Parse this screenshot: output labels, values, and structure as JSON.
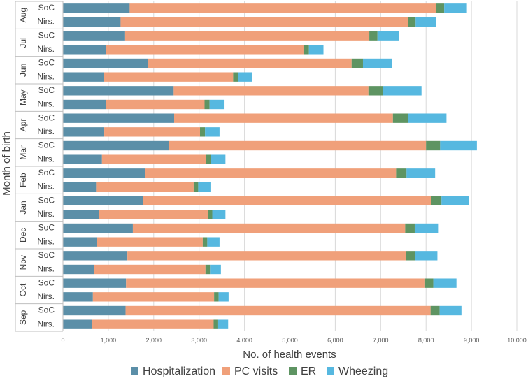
{
  "chart_data": {
    "type": "bar",
    "orientation": "horizontal-stacked",
    "title": "",
    "xlabel": "No. of health events",
    "ylabel": "Month of birth",
    "xlim": [
      0,
      10000
    ],
    "xticks": [
      0,
      1000,
      2000,
      3000,
      4000,
      5000,
      6000,
      7000,
      8000,
      9000,
      10000
    ],
    "xtick_labels": [
      "0",
      "1,000",
      "2,000",
      "3,000",
      "4,000",
      "5,000",
      "6,000",
      "7,000",
      "8,000",
      "9,000",
      "10,000"
    ],
    "grid": true,
    "legend_position": "bottom",
    "groups": [
      "Aug",
      "Jul",
      "Jun",
      "May",
      "Apr",
      "Mar",
      "Feb",
      "Jan",
      "Dec",
      "Nov",
      "Oct",
      "Sep"
    ],
    "subcategories": [
      "SoC",
      "Nirs."
    ],
    "series": [
      {
        "name": "Hospitalization",
        "color": "#5b8fa8",
        "values": [
          1470,
          1270,
          1370,
          950,
          1880,
          900,
          2440,
          940,
          2450,
          910,
          2330,
          860,
          1810,
          730,
          1770,
          790,
          1540,
          740,
          1420,
          680,
          1390,
          660,
          1380,
          640
        ]
      },
      {
        "name": "PC visits",
        "color": "#f0a07a",
        "values": [
          6750,
          6340,
          5380,
          4350,
          4480,
          2850,
          4290,
          2180,
          4820,
          2110,
          5670,
          2290,
          5530,
          2150,
          6340,
          2400,
          6000,
          2340,
          6140,
          2460,
          6590,
          2670,
          6720,
          2680
        ]
      },
      {
        "name": "ER",
        "color": "#5e9462",
        "values": [
          180,
          160,
          180,
          120,
          250,
          110,
          320,
          110,
          330,
          110,
          310,
          110,
          230,
          100,
          230,
          100,
          210,
          100,
          200,
          100,
          180,
          100,
          200,
          100
        ]
      },
      {
        "name": "Wheezing",
        "color": "#56b8e0",
        "values": [
          500,
          450,
          480,
          320,
          640,
          300,
          850,
          330,
          850,
          320,
          810,
          320,
          630,
          270,
          610,
          290,
          530,
          270,
          490,
          240,
          510,
          220,
          480,
          220
        ]
      }
    ]
  }
}
